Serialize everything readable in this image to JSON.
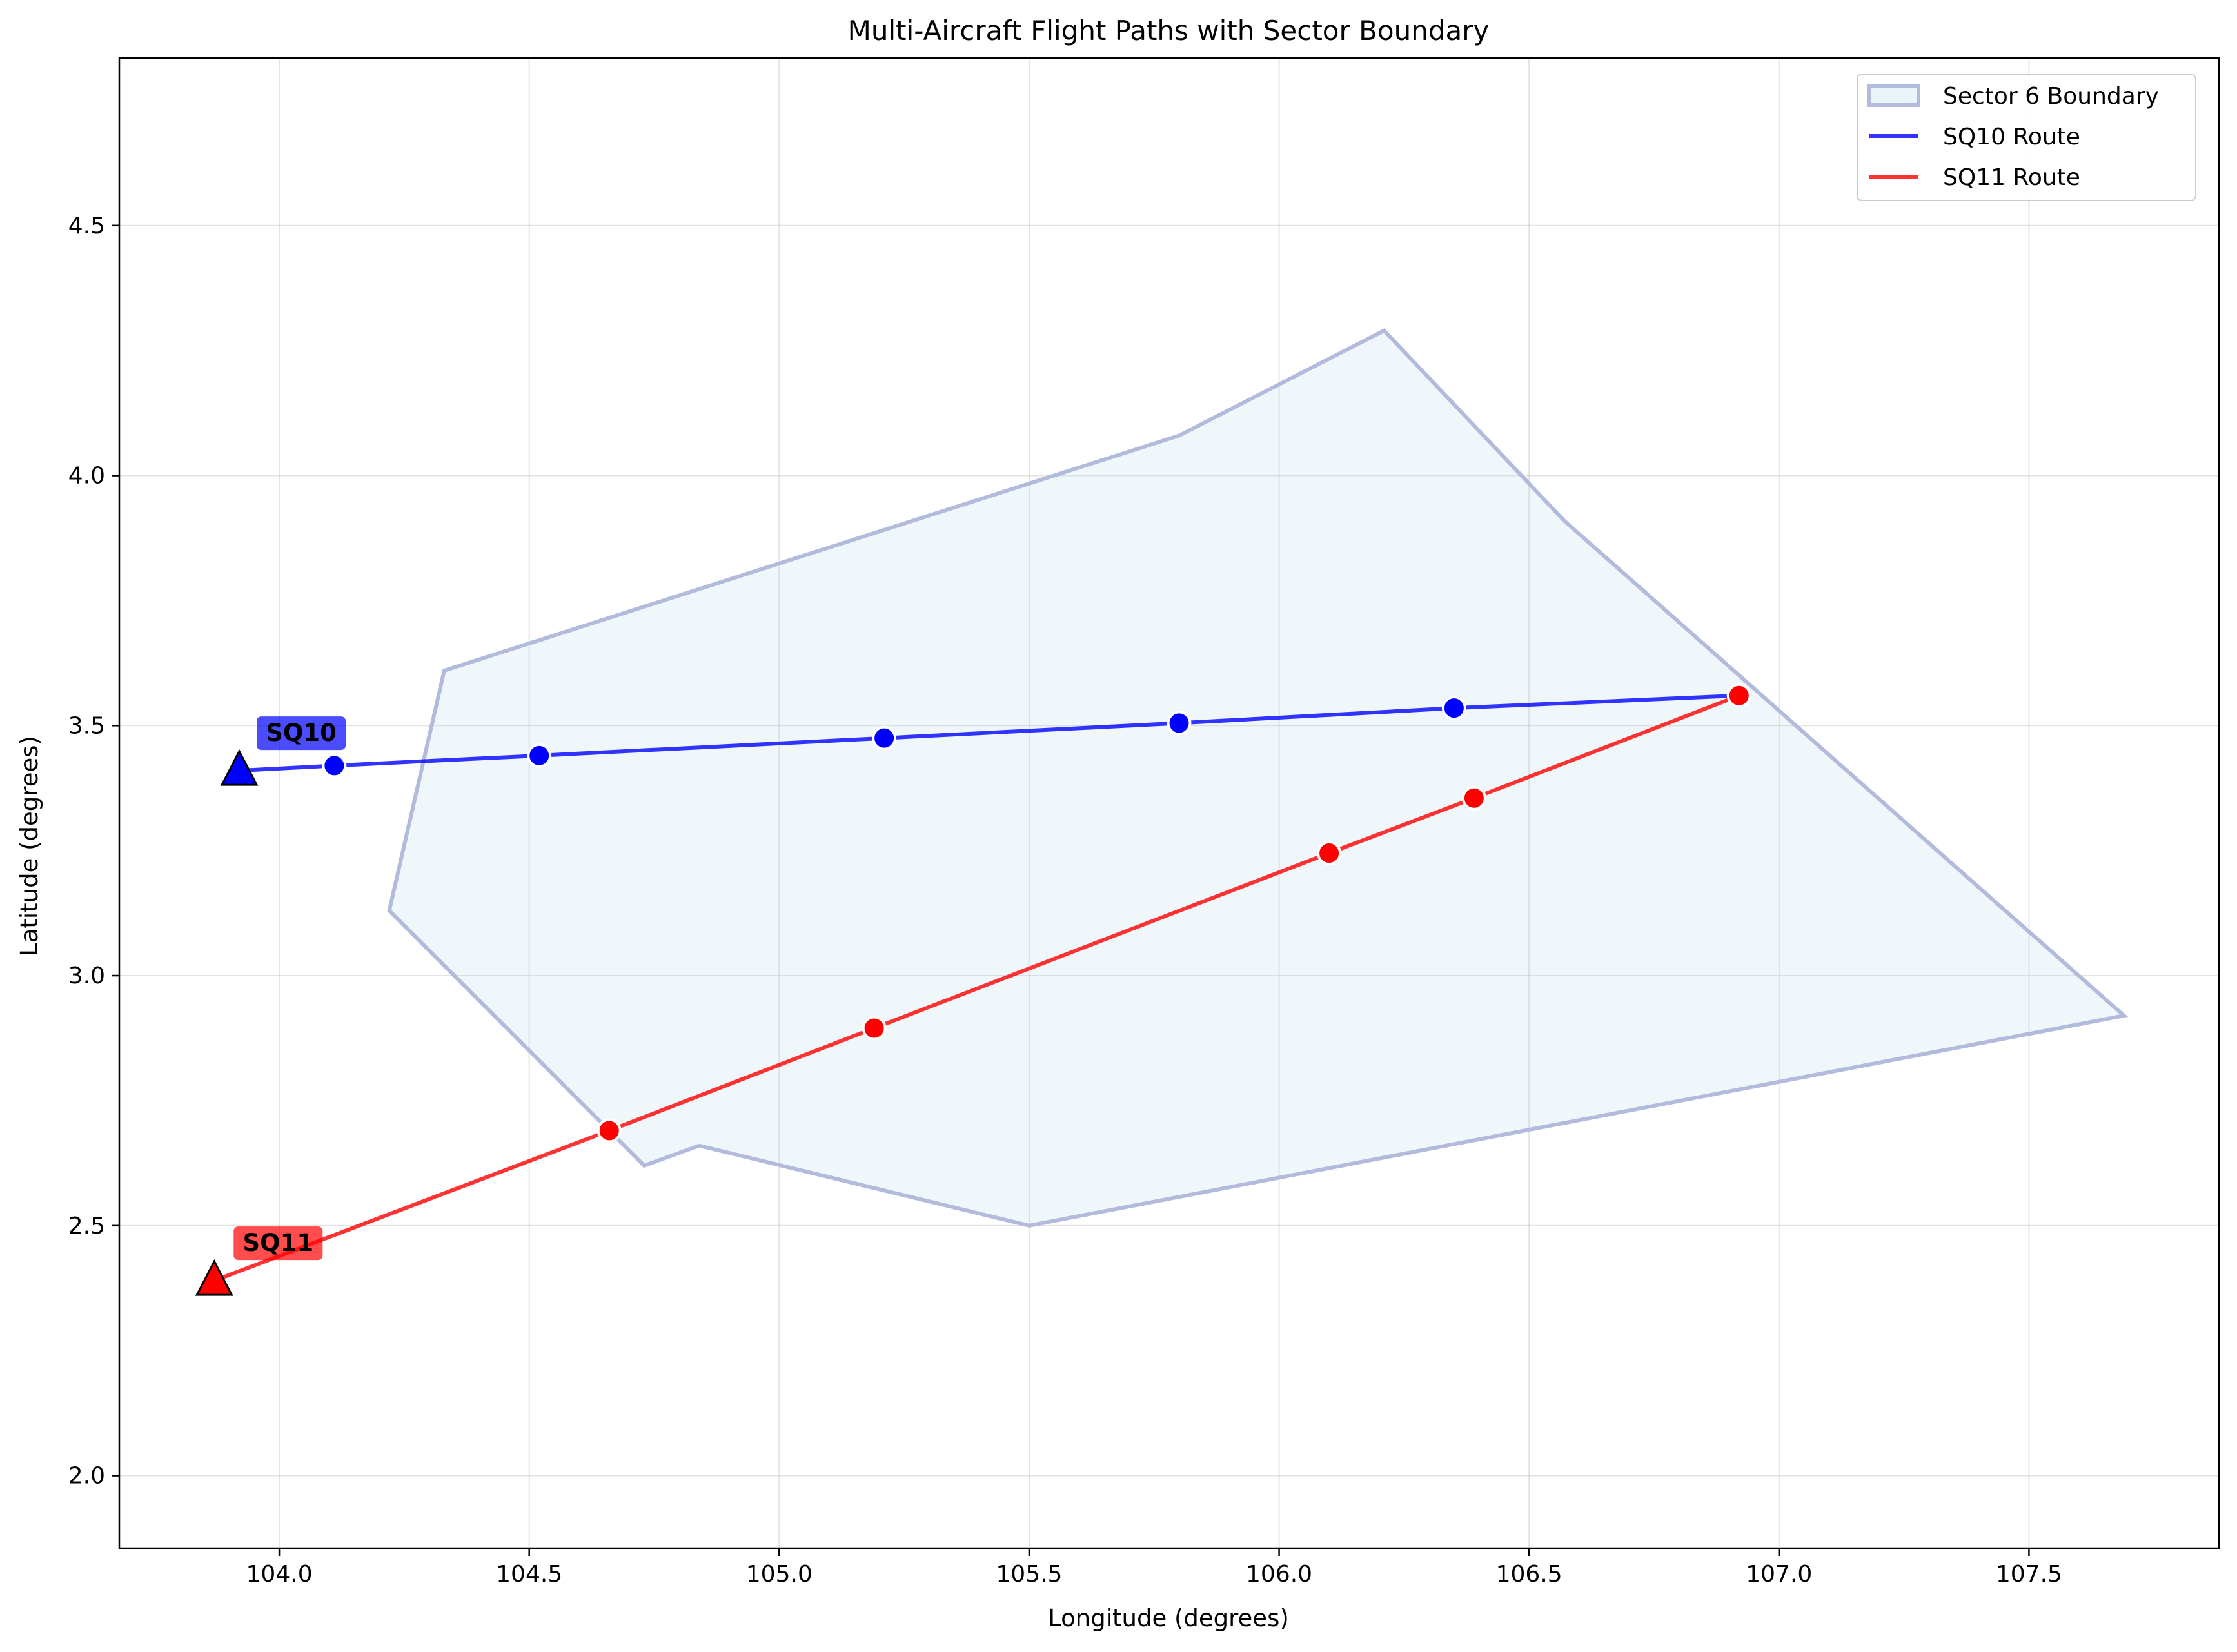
{
  "chart_data": {
    "type": "line",
    "title": "Multi-Aircraft Flight Paths with Sector Boundary",
    "xlabel": "Longitude (degrees)",
    "ylabel": "Latitude (degrees)",
    "xlim": [
      103.68,
      107.88
    ],
    "ylim": [
      1.855,
      4.835
    ],
    "xticks": [
      104.0,
      104.5,
      105.0,
      105.5,
      106.0,
      106.5,
      107.0,
      107.5
    ],
    "xtick_labels": [
      "104.0",
      "104.5",
      "105.0",
      "105.5",
      "106.0",
      "106.5",
      "107.0",
      "107.5"
    ],
    "yticks": [
      2.0,
      2.5,
      3.0,
      3.5,
      4.0,
      4.5
    ],
    "ytick_labels": [
      "2.0",
      "2.5",
      "3.0",
      "3.5",
      "4.0",
      "4.5"
    ],
    "grid": true,
    "legend_position": "top-right",
    "sector": {
      "name": "Sector 6 Boundary",
      "fill_color": "#add8e6",
      "edge_color": "#b3bbdd",
      "polygon": [
        [
          104.33,
          3.61
        ],
        [
          104.22,
          3.13
        ],
        [
          104.73,
          2.62
        ],
        [
          104.84,
          2.66
        ],
        [
          105.5,
          2.5
        ],
        [
          107.69,
          2.92
        ],
        [
          106.57,
          3.91
        ],
        [
          106.21,
          4.29
        ],
        [
          105.8,
          4.08
        ],
        [
          104.33,
          3.61
        ]
      ]
    },
    "series": [
      {
        "name": "SQ10 Route",
        "label": "SQ10",
        "color": "#0000ff",
        "start": [
          103.92,
          3.41
        ],
        "x": [
          103.92,
          104.11,
          104.52,
          105.21,
          105.8,
          106.35,
          106.92
        ],
        "y": [
          3.41,
          3.42,
          3.44,
          3.475,
          3.505,
          3.535,
          3.56
        ]
      },
      {
        "name": "SQ11 Route",
        "label": "SQ11",
        "color": "#ff0000",
        "start": [
          103.87,
          2.39
        ],
        "x": [
          103.87,
          104.66,
          105.19,
          106.1,
          106.39,
          106.92
        ],
        "y": [
          2.39,
          2.69,
          2.895,
          3.245,
          3.355,
          3.56
        ]
      }
    ]
  }
}
